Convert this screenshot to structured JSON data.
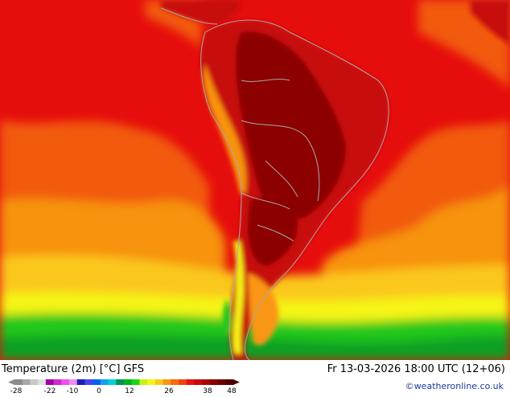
{
  "map": {
    "title": "Temperature (2m) [°C] GFS",
    "valid_time": "Fr 13-03-2026 18:00 UTC (12+06)",
    "credit": "©weatheronline.co.uk",
    "region_colors": {
      "ocean_hot": "#e60d0d",
      "ocean_warm": "#f25a0a",
      "ocean_mid": "#f7930f",
      "ocean_mild": "#fac81e",
      "cool": "#f5f514",
      "cold": "#22c81e",
      "colder": "#0aa020",
      "land_hot": "#b40a0a",
      "land_very_hot": "#8c0505",
      "border": "#a8a8a8"
    }
  },
  "legend": {
    "tick_labels": [
      "-28",
      "-22",
      "-10",
      "0",
      "12",
      "26",
      "38",
      "48"
    ],
    "colors": [
      "#8c8c8c",
      "#a8a8a8",
      "#c8c8c8",
      "#e1e1e1",
      "#a000a0",
      "#d228d2",
      "#f050f0",
      "#f08cf0",
      "#1e1eb4",
      "#4646f0",
      "#0064f0",
      "#14a0f0",
      "#00d2d2",
      "#009650",
      "#00b41e",
      "#1ed21e",
      "#c8f014",
      "#f5f514",
      "#fac81e",
      "#fa9614",
      "#f56e0a",
      "#f0460a",
      "#e61414",
      "#c80a0a",
      "#aa0505",
      "#8c0000",
      "#6e0000",
      "#500000"
    ]
  }
}
